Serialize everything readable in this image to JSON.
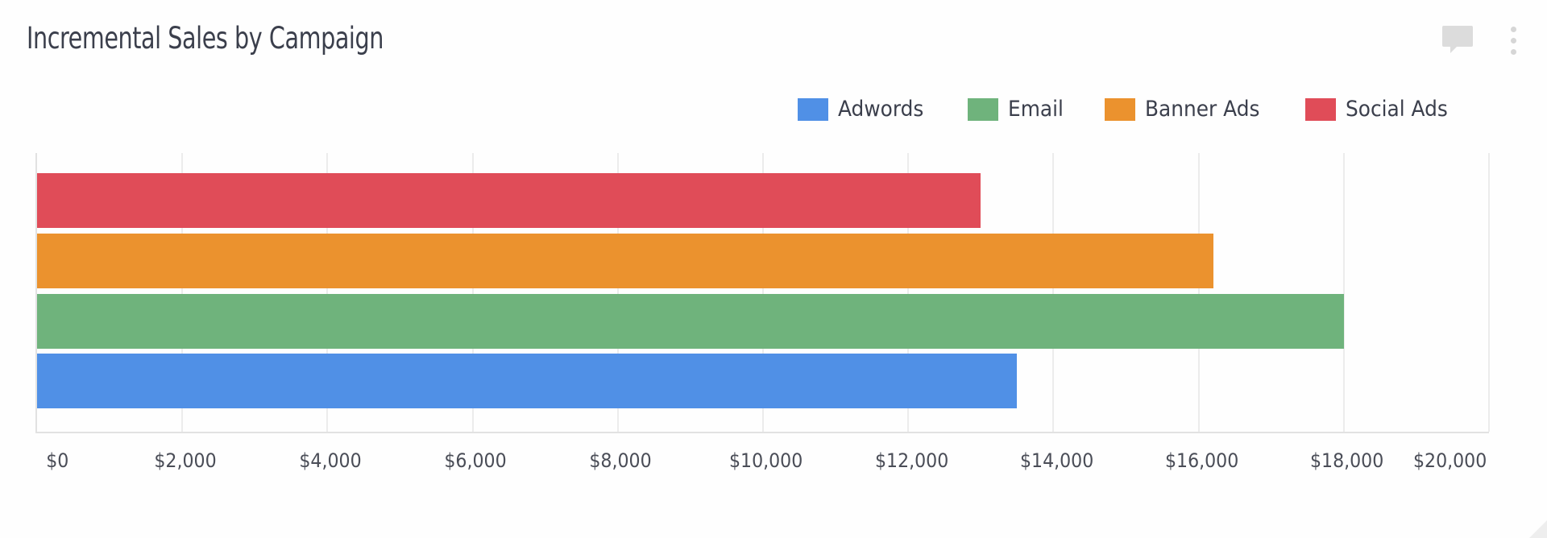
{
  "widget": {
    "title": "Incremental Sales by Campaign",
    "icons": [
      "comment-icon",
      "more-vert-icon"
    ]
  },
  "legend": [
    {
      "label": "Adwords",
      "color": "#5090e6"
    },
    {
      "label": "Email",
      "color": "#6fb37c"
    },
    {
      "label": "Banner Ads",
      "color": "#eb922e"
    },
    {
      "label": "Social Ads",
      "color": "#e04c58"
    }
  ],
  "ticks": [
    "$0",
    "$2,000",
    "$4,000",
    "$6,000",
    "$8,000",
    "$10,000",
    "$12,000",
    "$14,000",
    "$16,000",
    "$18,000",
    "$20,000"
  ],
  "chart_data": {
    "type": "bar",
    "orientation": "horizontal",
    "title": "Incremental Sales by Campaign",
    "categories": [
      "Social Ads",
      "Banner Ads",
      "Email",
      "Adwords"
    ],
    "series": [
      {
        "name": "Adwords",
        "values": [
          13500
        ],
        "color": "#5090e6"
      },
      {
        "name": "Email",
        "values": [
          18000
        ],
        "color": "#6fb37c"
      },
      {
        "name": "Banner Ads",
        "values": [
          16200
        ],
        "color": "#eb922e"
      },
      {
        "name": "Social Ads",
        "values": [
          13000
        ],
        "color": "#e04c58"
      }
    ],
    "xlabel": "",
    "ylabel": "",
    "xlim": [
      0,
      20000
    ],
    "x_ticks": [
      "$0",
      "$2,000",
      "$4,000",
      "$6,000",
      "$8,000",
      "$10,000",
      "$12,000",
      "$14,000",
      "$16,000",
      "$18,000",
      "$20,000"
    ],
    "grid": true,
    "legend_position": "top-right"
  }
}
